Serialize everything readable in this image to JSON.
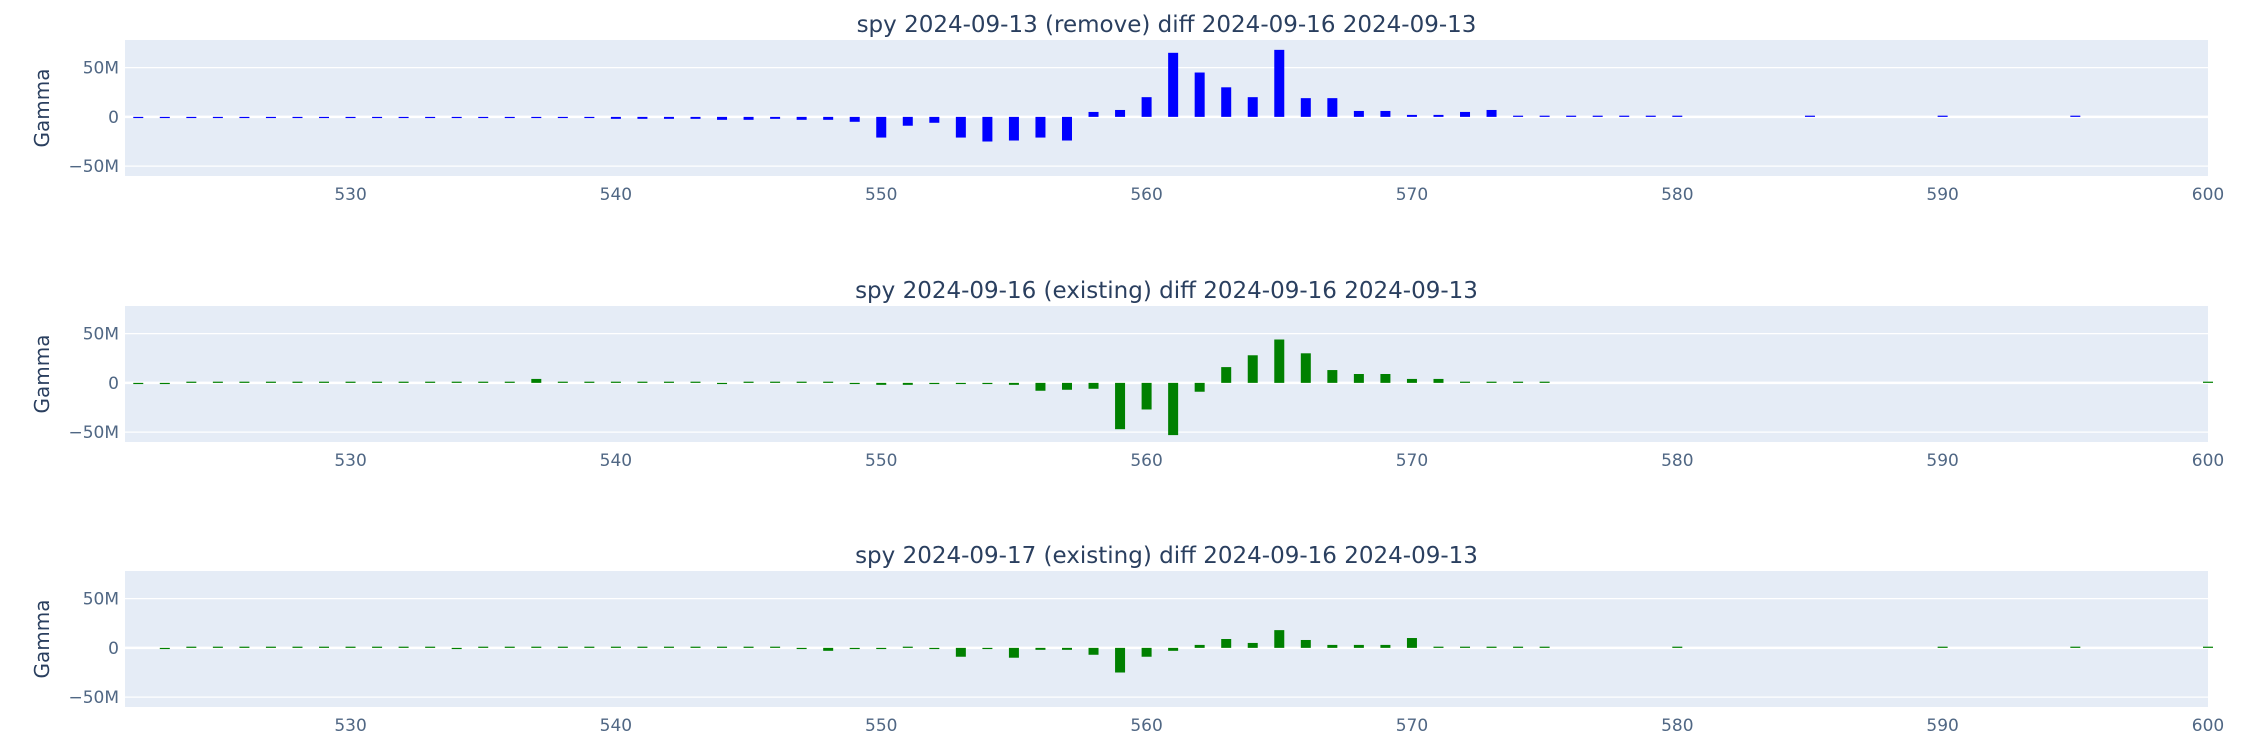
{
  "chart_data": [
    {
      "type": "bar",
      "title": "spy 2024-09-13 (remove) diff 2024-09-16 2024-09-13",
      "xlabel": "",
      "ylabel": "Gamma",
      "xlim": [
        521.5,
        600
      ],
      "ylim": [
        -60,
        78
      ],
      "x_ticks": [
        530,
        540,
        550,
        560,
        570,
        580,
        590,
        600
      ],
      "y_ticks": [
        {
          "value": 50,
          "label": "50M"
        },
        {
          "value": 0,
          "label": "0"
        },
        {
          "value": -50,
          "label": "−50M"
        }
      ],
      "color": "#0000ff",
      "grid": true,
      "series": [
        {
          "x": [
            522,
            523,
            524,
            525,
            526,
            527,
            528,
            529,
            530,
            531,
            532,
            533,
            534,
            535,
            536,
            537,
            538,
            539,
            540,
            541,
            542,
            543,
            544,
            545,
            546,
            547,
            548,
            549,
            550,
            551,
            552,
            553,
            554,
            555,
            556,
            557,
            558,
            559,
            560,
            561,
            562,
            563,
            564,
            565,
            566,
            567,
            568,
            569,
            570,
            571,
            572,
            573,
            574,
            575,
            576,
            577,
            578,
            579,
            580,
            585,
            590,
            595
          ],
          "values": [
            -0.3,
            -0.3,
            -0.3,
            -1.0,
            -0.5,
            -0.5,
            -0.5,
            -0.5,
            -1.0,
            -0.5,
            -0.5,
            -0.5,
            -0.5,
            -1.0,
            -0.5,
            -0.5,
            -0.5,
            -0.5,
            -2.0,
            -2.0,
            -2.0,
            -2.0,
            -3.0,
            -3.0,
            -2.0,
            -3.0,
            -3.0,
            -5.0,
            -21,
            -9,
            -6,
            -21,
            -25,
            -24,
            -21,
            -24,
            5,
            7,
            20,
            65,
            45,
            30,
            20,
            68,
            19,
            19,
            6,
            6,
            2,
            2,
            5,
            7,
            0.5,
            0.4,
            0.4,
            0.4,
            0.4,
            0.4,
            0.4,
            0.3,
            0.3,
            0.3
          ]
        }
      ]
    },
    {
      "type": "bar",
      "title": "spy 2024-09-16 (existing) diff 2024-09-16 2024-09-13",
      "xlabel": "",
      "ylabel": "Gamma",
      "xlim": [
        521.5,
        600
      ],
      "ylim": [
        -60,
        78
      ],
      "x_ticks": [
        530,
        540,
        550,
        560,
        570,
        580,
        590,
        600
      ],
      "y_ticks": [
        {
          "value": 50,
          "label": "50M"
        },
        {
          "value": 0,
          "label": "0"
        },
        {
          "value": -50,
          "label": "−50M"
        }
      ],
      "color": "#008000",
      "grid": true,
      "series": [
        {
          "x": [
            522,
            523,
            524,
            525,
            526,
            527,
            528,
            529,
            530,
            531,
            532,
            533,
            534,
            535,
            536,
            537,
            538,
            539,
            540,
            541,
            542,
            543,
            544,
            545,
            546,
            547,
            548,
            549,
            550,
            551,
            552,
            553,
            554,
            555,
            556,
            557,
            558,
            559,
            560,
            561,
            562,
            563,
            564,
            565,
            566,
            567,
            568,
            569,
            570,
            571,
            572,
            573,
            574,
            575,
            600
          ],
          "values": [
            -0.3,
            -0.3,
            0.3,
            0.3,
            0.3,
            0.3,
            0.3,
            0.3,
            0.3,
            0.3,
            0.3,
            0.3,
            0.3,
            0.3,
            0.3,
            4,
            0.3,
            0.3,
            0.3,
            0.3,
            0.3,
            0.3,
            -1,
            0.3,
            0.3,
            0.3,
            0.3,
            -1,
            -2,
            -2,
            -1,
            -1,
            -1,
            -2,
            -8,
            -7,
            -6,
            -47,
            -27,
            -53,
            -9,
            16,
            28,
            44,
            30,
            13,
            9,
            9,
            4,
            4,
            1,
            0.5,
            0.5,
            0.5,
            0.3
          ]
        }
      ]
    },
    {
      "type": "bar",
      "title": "spy 2024-09-17 (existing) diff 2024-09-16 2024-09-13",
      "xlabel": "",
      "ylabel": "Gamma",
      "xlim": [
        521.5,
        600
      ],
      "ylim": [
        -60,
        78
      ],
      "x_ticks": [
        530,
        540,
        550,
        560,
        570,
        580,
        590,
        600
      ],
      "y_ticks": [
        {
          "value": 50,
          "label": "50M"
        },
        {
          "value": 0,
          "label": "0"
        },
        {
          "value": -50,
          "label": "−50M"
        }
      ],
      "color": "#008000",
      "grid": true,
      "series": [
        {
          "x": [
            523,
            524,
            525,
            526,
            527,
            528,
            529,
            530,
            531,
            532,
            533,
            534,
            535,
            536,
            537,
            538,
            539,
            540,
            541,
            542,
            543,
            544,
            545,
            546,
            547,
            548,
            549,
            550,
            551,
            552,
            553,
            554,
            555,
            556,
            557,
            558,
            559,
            560,
            561,
            562,
            563,
            564,
            565,
            566,
            567,
            568,
            569,
            570,
            571,
            572,
            573,
            574,
            575,
            580,
            590,
            595,
            600
          ],
          "values": [
            -0.3,
            0.3,
            0.3,
            0.3,
            0.3,
            0.3,
            0.3,
            0.3,
            0.3,
            0.3,
            0.3,
            -0.3,
            0.3,
            0.3,
            0.3,
            0.3,
            0.3,
            0.3,
            0.3,
            1,
            0.3,
            0.3,
            0.3,
            1,
            -0.3,
            -3,
            -0.3,
            -0.3,
            1,
            -1,
            -9,
            -1,
            -10,
            -2,
            -2,
            -7,
            -25,
            -9,
            -3,
            3,
            9,
            5,
            18,
            8,
            3,
            3,
            3,
            10,
            1,
            0.3,
            0.3,
            0.3,
            0.3,
            0.3,
            0.3,
            0.3,
            0.3
          ]
        }
      ]
    }
  ]
}
